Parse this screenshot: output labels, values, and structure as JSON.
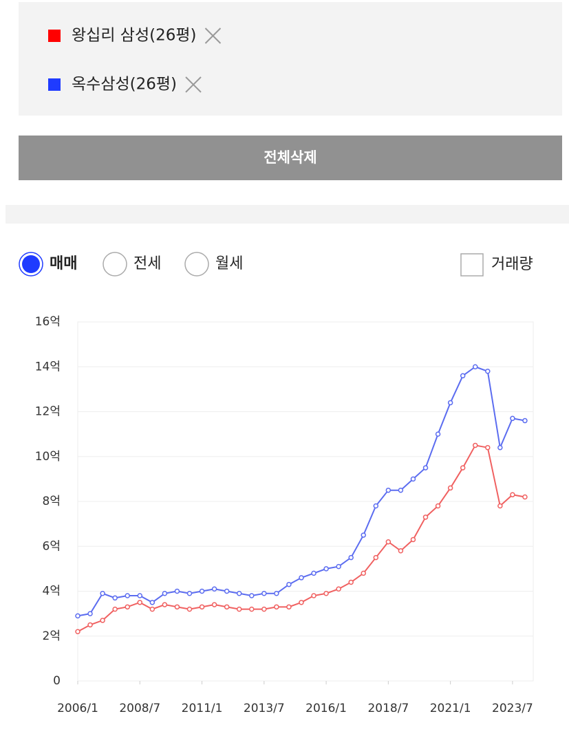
{
  "legend_panel": {
    "items": [
      {
        "name": "왕십리 삼성(26평)",
        "color": "#ff0000"
      },
      {
        "name": "옥수삼성(26평)",
        "color": "#1f3bff"
      }
    ]
  },
  "delete_button": "전체삭제",
  "options": [
    {
      "label": "매매",
      "checked": true
    },
    {
      "label": "전세",
      "checked": false
    },
    {
      "label": "월세",
      "checked": false
    }
  ],
  "volume_checkbox": {
    "label": "거래량",
    "checked": false
  },
  "chart_data": {
    "type": "line",
    "x": [
      "2006/1",
      "2006/7",
      "2007/1",
      "2007/7",
      "2008/1",
      "2008/7",
      "2009/1",
      "2009/7",
      "2010/1",
      "2010/7",
      "2011/1",
      "2011/7",
      "2012/1",
      "2012/7",
      "2013/1",
      "2013/7",
      "2014/1",
      "2014/7",
      "2015/1",
      "2015/7",
      "2016/1",
      "2016/7",
      "2017/1",
      "2017/7",
      "2018/1",
      "2018/7",
      "2019/1",
      "2019/7",
      "2020/1",
      "2020/7",
      "2021/1",
      "2021/7",
      "2022/1",
      "2022/7",
      "2023/1",
      "2023/7",
      "2024/1"
    ],
    "series": [
      {
        "name": "왕십리 삼성(26평)",
        "color": "#f06060",
        "values": [
          2.2,
          2.5,
          2.7,
          3.2,
          3.3,
          3.5,
          3.2,
          3.4,
          3.3,
          3.2,
          3.3,
          3.4,
          3.3,
          3.2,
          3.2,
          3.2,
          3.3,
          3.3,
          3.5,
          3.8,
          3.9,
          4.1,
          4.4,
          4.8,
          5.5,
          6.2,
          5.8,
          6.3,
          7.3,
          7.8,
          8.6,
          9.5,
          10.5,
          10.4,
          7.8,
          8.3,
          8.2
        ]
      },
      {
        "name": "옥수삼성(26평)",
        "color": "#5b6cf0",
        "values": [
          2.9,
          3.0,
          3.9,
          3.7,
          3.8,
          3.8,
          3.5,
          3.9,
          4.0,
          3.9,
          4.0,
          4.1,
          4.0,
          3.9,
          3.8,
          3.9,
          3.9,
          4.3,
          4.6,
          4.8,
          5.0,
          5.1,
          5.5,
          6.5,
          7.8,
          8.5,
          8.5,
          9.0,
          9.5,
          11.0,
          12.4,
          13.6,
          14.0,
          13.8,
          10.4,
          11.7,
          11.6
        ]
      }
    ],
    "xlim": [
      "2006/1",
      "2024/5"
    ],
    "xticks": [
      "2006/1",
      "2008/7",
      "2011/1",
      "2013/7",
      "2016/1",
      "2018/7",
      "2021/1",
      "2023/7"
    ],
    "ylim": [
      0,
      16
    ],
    "yticks": [
      0,
      {
        "value": 2,
        "label": "2억"
      },
      {
        "value": 4,
        "label": "4억"
      },
      {
        "value": 6,
        "label": "6억"
      },
      {
        "value": 8,
        "label": "8억"
      },
      {
        "value": 10,
        "label": "10억"
      },
      {
        "value": 12,
        "label": "12억"
      },
      {
        "value": 14,
        "label": "14억"
      },
      {
        "value": 16,
        "label": "16억"
      }
    ],
    "grid": true
  }
}
